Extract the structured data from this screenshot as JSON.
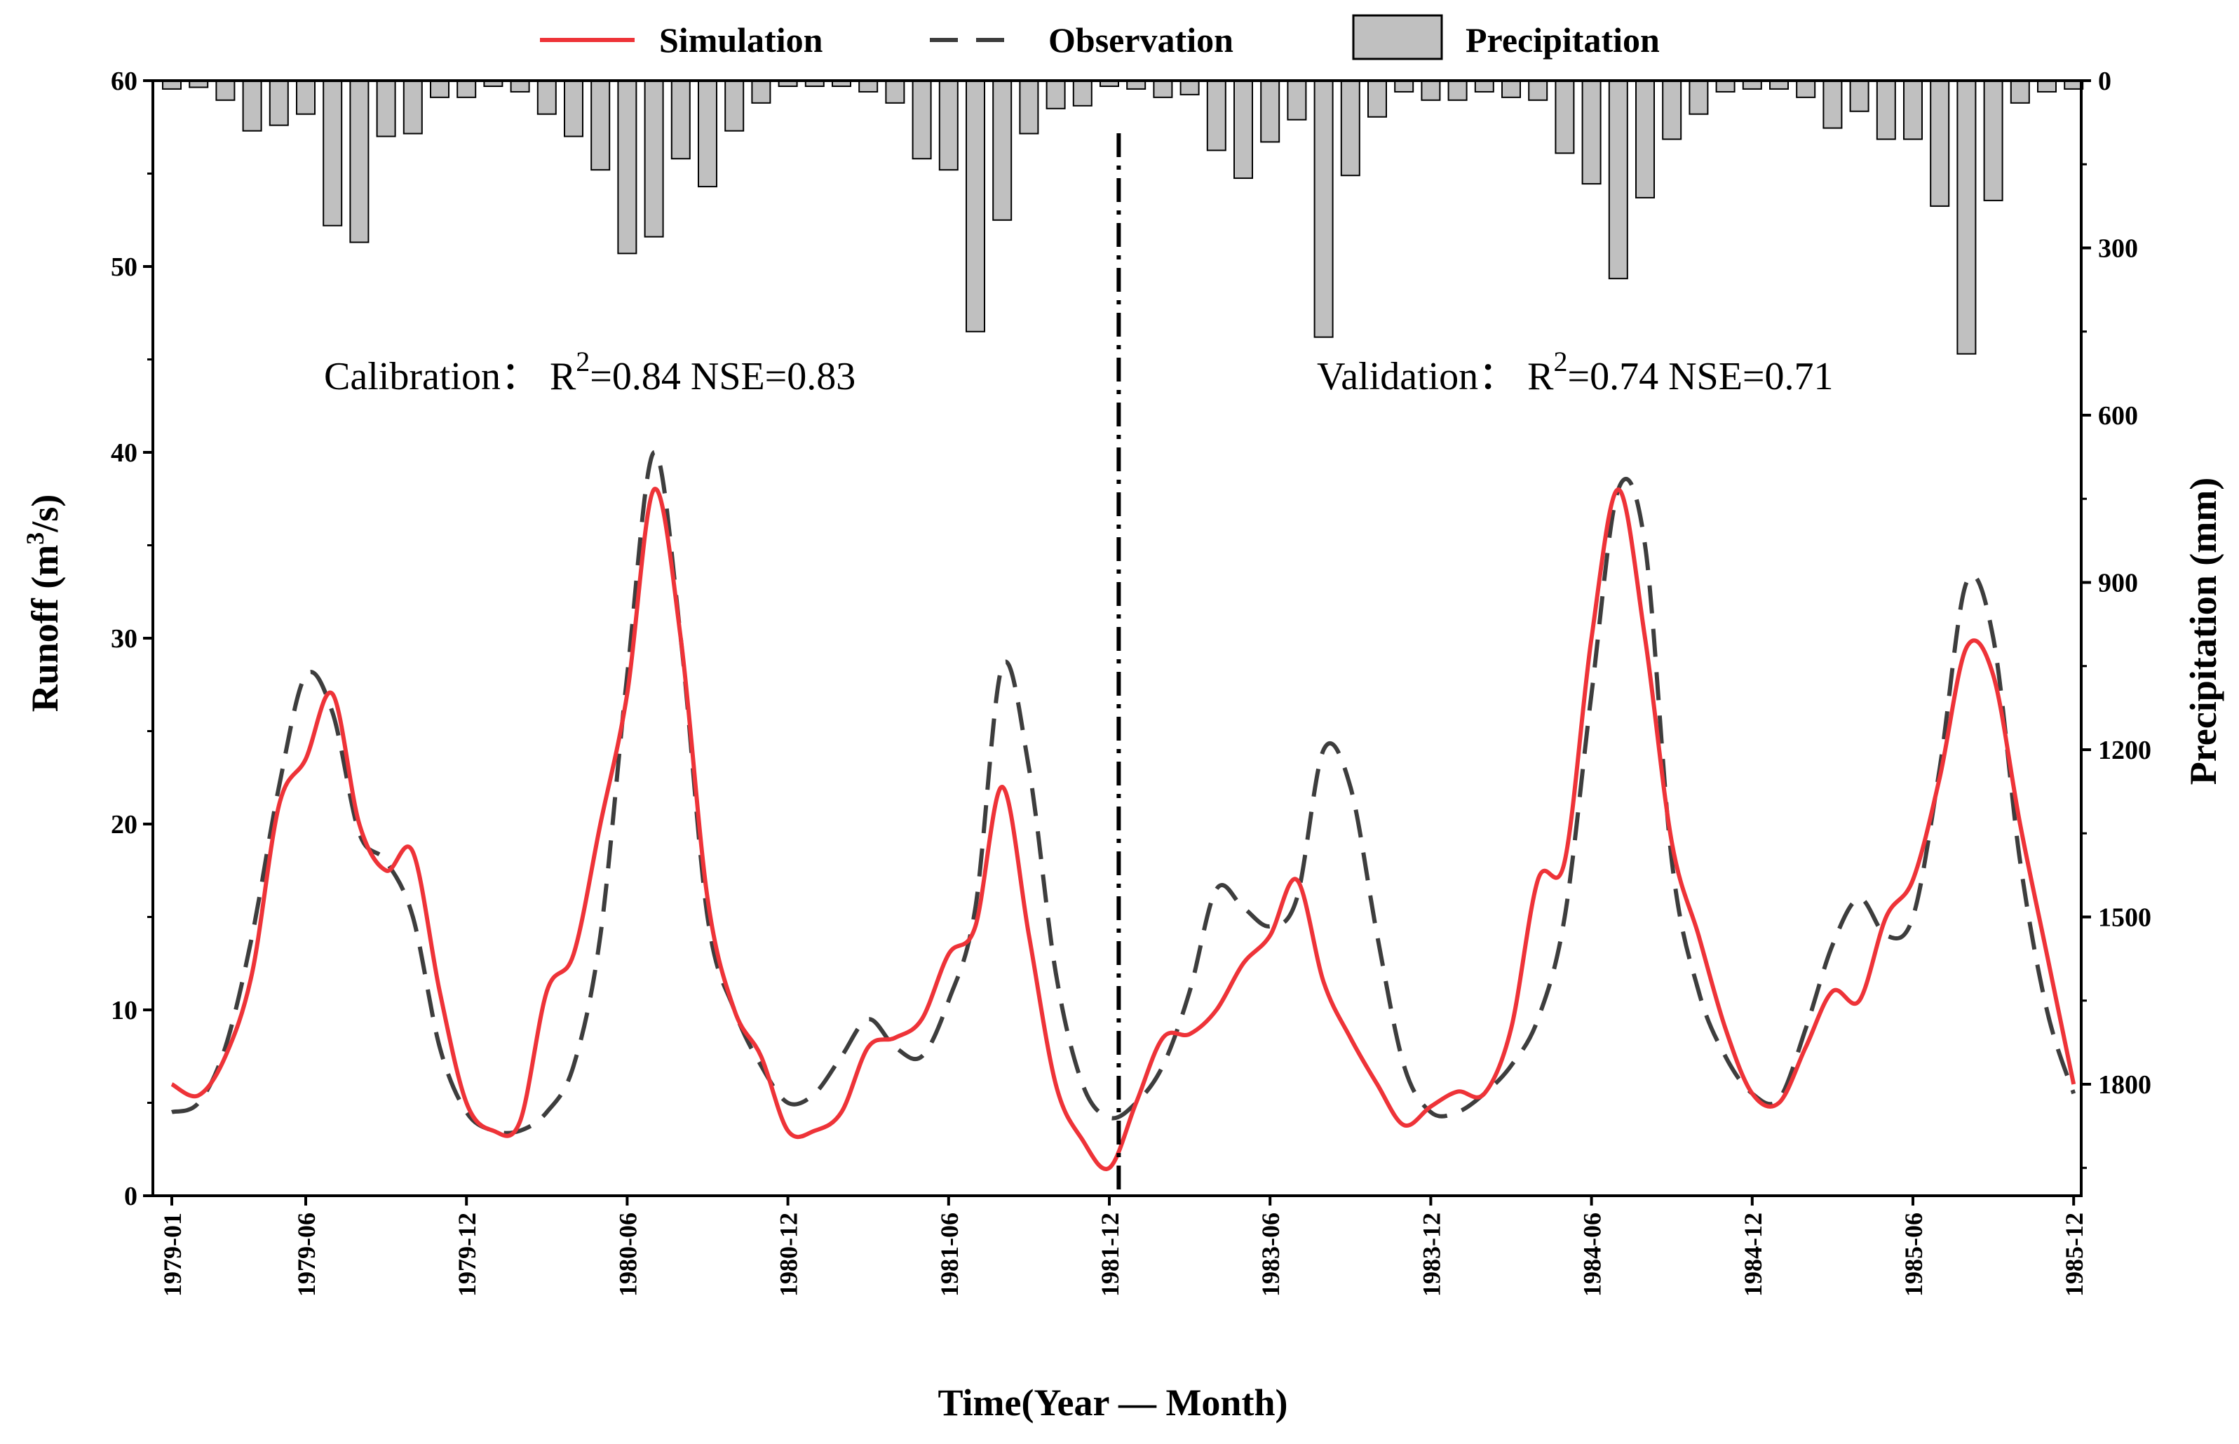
{
  "chart_data": {
    "type": "line",
    "title": "",
    "xlabel": "Time(Year — Month)",
    "ylabel": "Runoff (m³/s)",
    "ylabel_parts": [
      "Runoff (m",
      "3",
      "/s)"
    ],
    "y2label": "Precipitation (mm)",
    "ylim": [
      0,
      60
    ],
    "y2lim": [
      0,
      2000
    ],
    "y_ticks": [
      "0",
      "10",
      "20",
      "30",
      "40",
      "50",
      "60"
    ],
    "y_tick_values": [
      0,
      10,
      20,
      30,
      40,
      50,
      60
    ],
    "y2_ticks": [
      "0",
      "300",
      "600",
      "900",
      "1200",
      "1500",
      "1800"
    ],
    "y2_tick_values": [
      0,
      300,
      600,
      900,
      1200,
      1500,
      1800
    ],
    "x_tick_labels": [
      "1979-01",
      "1979-06",
      "1979-12",
      "1980-06",
      "1980-12",
      "1981-06",
      "1981-12",
      "1983-06",
      "1983-12",
      "1984-06",
      "1984-12",
      "1985-06",
      "1985-12"
    ],
    "x_tick_indices": [
      0,
      5,
      11,
      17,
      23,
      29,
      35,
      41,
      47,
      53,
      59,
      65,
      71
    ],
    "split_index": 36,
    "legend": {
      "position": "top",
      "entries": [
        "Simulation",
        "Observation",
        "Precipitation"
      ]
    },
    "annotations": {
      "calibration": {
        "prefix": "Calibration： R",
        "sup": "2",
        "suffix": "=0.84  NSE=0.83"
      },
      "validation": {
        "prefix": "Validation： R",
        "sup": "2",
        "suffix": "=0.74  NSE=0.71"
      }
    },
    "series": [
      {
        "name": "Simulation",
        "color": "#ee3338",
        "style": "solid",
        "axis": "left",
        "values": [
          6,
          5.4,
          7.5,
          12,
          21,
          23.5,
          27,
          20,
          17.5,
          18.5,
          11,
          5,
          3.5,
          4,
          11,
          13,
          20,
          27,
          38,
          30,
          16,
          10,
          7.5,
          3.5,
          3.5,
          4.5,
          8,
          8.5,
          9.5,
          13,
          14.5,
          22,
          14,
          6,
          3,
          1.5,
          5,
          8.5,
          8.7,
          10,
          12.5,
          14,
          17,
          11.5,
          8.5,
          6,
          3.8,
          4.8,
          5.6,
          5.5,
          9,
          17,
          18,
          30,
          38,
          30,
          19,
          14,
          9,
          5.5,
          5,
          8,
          11,
          10.5,
          15,
          17,
          22.5,
          29.5,
          28,
          20,
          13,
          6
        ]
      },
      {
        "name": "Observation",
        "color": "#3d3d3d",
        "style": "dashed",
        "axis": "left",
        "values": [
          4.5,
          5,
          8,
          14,
          22,
          28,
          26,
          19.5,
          18,
          15,
          8,
          4.5,
          3.5,
          3.5,
          4.5,
          7,
          14,
          28,
          40,
          30,
          15,
          10,
          7,
          5,
          5.5,
          7.5,
          9.5,
          8,
          7.5,
          10.5,
          15.5,
          28.5,
          23,
          12,
          6,
          4.2,
          5,
          7,
          11,
          16.5,
          15.5,
          14.5,
          16,
          24,
          22,
          14,
          7,
          4.5,
          4.5,
          5.5,
          7,
          9.5,
          15,
          27,
          38,
          35,
          18,
          11,
          7.5,
          5.5,
          5.2,
          9,
          13.5,
          16,
          14,
          15,
          23,
          33,
          30,
          18,
          10,
          5.5
        ]
      },
      {
        "name": "Precipitation",
        "color": "#c0c0c0",
        "style": "bar",
        "axis": "right_inverted",
        "values": [
          15,
          12,
          35,
          90,
          80,
          60,
          260,
          290,
          100,
          95,
          30,
          30,
          10,
          20,
          60,
          100,
          160,
          310,
          280,
          140,
          190,
          90,
          40,
          10,
          10,
          10,
          20,
          40,
          140,
          160,
          450,
          250,
          95,
          50,
          45,
          10,
          15,
          30,
          25,
          125,
          175,
          110,
          70,
          460,
          170,
          65,
          20,
          35,
          35,
          20,
          30,
          35,
          130,
          185,
          355,
          210,
          105,
          60,
          20,
          15,
          15,
          30,
          85,
          55,
          105,
          105,
          225,
          490,
          215,
          40,
          20,
          15
        ]
      }
    ]
  }
}
